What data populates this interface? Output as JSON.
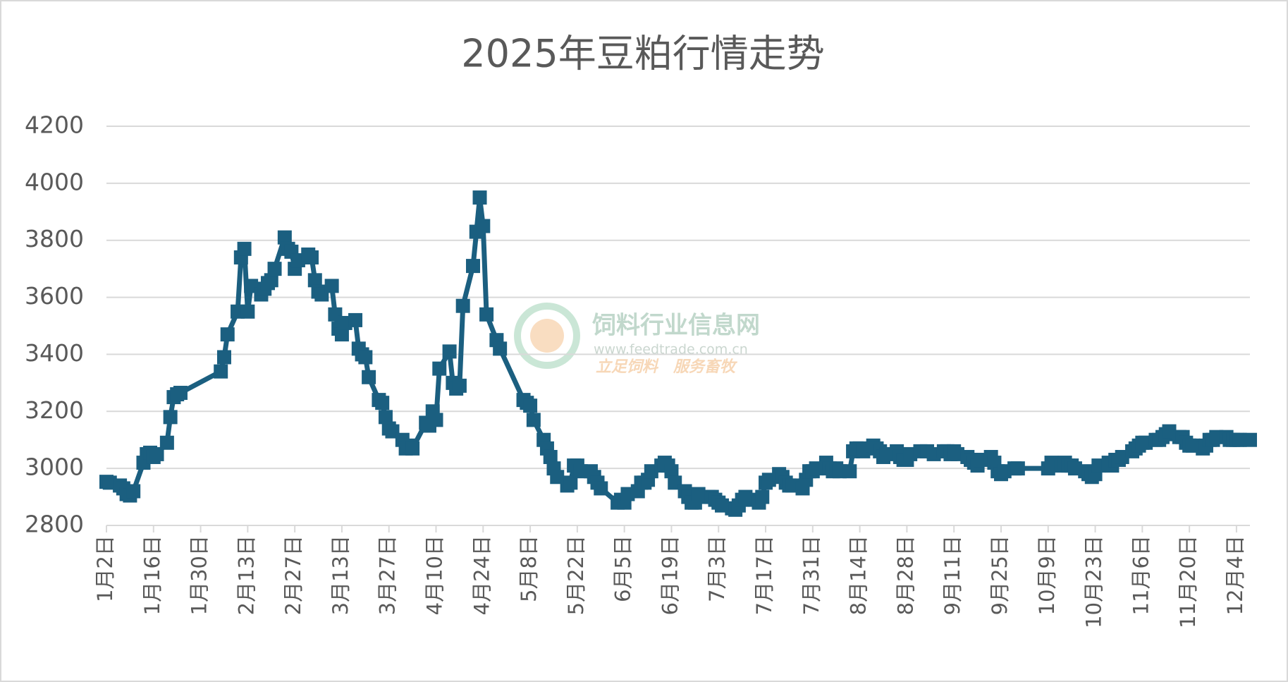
{
  "chart_data": {
    "type": "line",
    "title": "2025年豆粕行情走势",
    "color": "#1b5f80",
    "grid": true,
    "ylim": [
      2800,
      4200
    ],
    "yticks": [
      2800,
      3000,
      3200,
      3400,
      3600,
      3800,
      4000,
      4200
    ],
    "xlim": [
      "1月2日",
      "12月8日"
    ],
    "xticks": [
      "1月2日",
      "1月16日",
      "1月30日",
      "2月13日",
      "2月27日",
      "3月13日",
      "3月27日",
      "4月10日",
      "4月24日",
      "5月8日",
      "5月22日",
      "6月5日",
      "6月19日",
      "7月3日",
      "7月17日",
      "7月31日",
      "8月14日",
      "8月28日",
      "9月11日",
      "9月25日",
      "10月9日",
      "10月23日",
      "11月6日",
      "11月20日",
      "12月4日"
    ],
    "x": [
      "1月2日",
      "1月3日",
      "1月6日",
      "1月7日",
      "1月8日",
      "1月9日",
      "1月10日",
      "1月13日",
      "1月14日",
      "1月15日",
      "1月16日",
      "1月17日",
      "1月20日",
      "1月21日",
      "1月22日",
      "1月23日",
      "1月24日",
      "2月5日",
      "2月6日",
      "2月7日",
      "2月10日",
      "2月11日",
      "2月12日",
      "2月13日",
      "2月14日",
      "2月17日",
      "2月18日",
      "2月19日",
      "2月20日",
      "2月21日",
      "2月24日",
      "2月25日",
      "2月26日",
      "2月27日",
      "2月28日",
      "3月3日",
      "3月4日",
      "3月5日",
      "3月6日",
      "3月7日",
      "3月10日",
      "3月11日",
      "3月12日",
      "3月13日",
      "3月14日",
      "3月17日",
      "3月18日",
      "3月19日",
      "3月20日",
      "3月21日",
      "3月24日",
      "3月25日",
      "3月26日",
      "3月27日",
      "3月28日",
      "3月31日",
      "4月1日",
      "4月2日",
      "4月3日",
      "4月7日",
      "4月8日",
      "4月9日",
      "4月10日",
      "4月11日",
      "4月14日",
      "4月15日",
      "4月16日",
      "4月17日",
      "4月18日",
      "4月21日",
      "4月22日",
      "4月23日",
      "4月24日",
      "4月25日",
      "4月28日",
      "4月29日",
      "5月6日",
      "5月7日",
      "5月8日",
      "5月9日",
      "5月12日",
      "5月13日",
      "5月14日",
      "5月15日",
      "5月16日",
      "5月19日",
      "5月20日",
      "5月21日",
      "5月22日",
      "5月23日",
      "5月26日",
      "5月27日",
      "5月28日",
      "5月29日",
      "6月3日",
      "6月4日",
      "6月5日",
      "6月6日",
      "6月9日",
      "6月10日",
      "6月11日",
      "6月12日",
      "6月13日",
      "6月16日",
      "6月17日",
      "6月18日",
      "6月19日",
      "6月20日",
      "6月23日",
      "6月24日",
      "6月25日",
      "6月26日",
      "6月27日",
      "6月30日",
      "7月1日",
      "7月2日",
      "7月3日",
      "7月4日",
      "7月7日",
      "7月8日",
      "7月9日",
      "7月10日",
      "7月11日",
      "7月14日",
      "7月15日",
      "7月16日",
      "7月17日",
      "7月18日",
      "7月21日",
      "7月22日",
      "7月23日",
      "7月24日",
      "7月25日",
      "7月28日",
      "7月29日",
      "7月30日",
      "7月31日",
      "8月1日",
      "8月4日",
      "8月5日",
      "8月6日",
      "8月7日",
      "8月8日",
      "8月11日",
      "8月12日",
      "8月13日",
      "8月14日",
      "8月15日",
      "8月18日",
      "8月19日",
      "8月20日",
      "8月21日",
      "8月22日",
      "8月25日",
      "8月26日",
      "8月27日",
      "8月28日",
      "8月29日",
      "9月1日",
      "9月3日",
      "9月5日",
      "9月8日",
      "9月9日",
      "9月10日",
      "9月11日",
      "9月12日",
      "9月15日",
      "9月16日",
      "9月17日",
      "9月18日",
      "9月19日",
      "9月22日",
      "9月23日",
      "9月24日",
      "9月25日",
      "9月26日",
      "9月29日",
      "9月30日",
      "10月9日",
      "10月10日",
      "10月13日",
      "10月14日",
      "10月15日",
      "10月16日",
      "10月17日",
      "10月20日",
      "10月21日",
      "10月22日",
      "10月23日",
      "10月24日",
      "10月27日",
      "10月28日",
      "10月29日",
      "10月30日",
      "10月31日",
      "11月3日",
      "11月4日",
      "11月5日",
      "11月6日",
      "11月7日",
      "11月10日",
      "11月11日",
      "11月12日",
      "11月13日",
      "11月14日",
      "11月17日",
      "11月18日",
      "11月19日",
      "11月20日",
      "11月21日",
      "11月24日",
      "11月25日",
      "11月26日",
      "11月27日",
      "11月28日",
      "12月1日",
      "12月2日",
      "12月3日",
      "12月4日",
      "12月5日",
      "12月8日"
    ],
    "values": [
      2953,
      2950,
      2940,
      2930,
      2910,
      2905,
      2920,
      3020,
      3050,
      3055,
      3040,
      3050,
      3090,
      3180,
      3250,
      3260,
      3265,
      3340,
      3390,
      3470,
      3550,
      3740,
      3770,
      3550,
      3640,
      3610,
      3630,
      3650,
      3660,
      3700,
      3810,
      3770,
      3760,
      3700,
      3730,
      3750,
      3740,
      3660,
      3620,
      3610,
      3640,
      3540,
      3490,
      3470,
      3510,
      3520,
      3420,
      3400,
      3390,
      3320,
      3240,
      3230,
      3180,
      3140,
      3130,
      3100,
      3070,
      3080,
      3070,
      3160,
      3150,
      3200,
      3170,
      3350,
      3410,
      3300,
      3280,
      3290,
      3570,
      3710,
      3830,
      3950,
      3850,
      3540,
      3450,
      3420,
      3240,
      3230,
      3220,
      3170,
      3100,
      3070,
      3040,
      3000,
      2970,
      2940,
      2950,
      3010,
      3010,
      2990,
      2990,
      2970,
      2950,
      2930,
      2880,
      2890,
      2880,
      2910,
      2920,
      2950,
      2950,
      2960,
      2990,
      3010,
      3020,
      3010,
      2990,
      2950,
      2920,
      2900,
      2880,
      2880,
      2910,
      2900,
      2900,
      2890,
      2880,
      2870,
      2860,
      2855,
      2870,
      2890,
      2900,
      2890,
      2880,
      2900,
      2950,
      2960,
      2980,
      2970,
      2950,
      2940,
      2940,
      2930,
      2960,
      2990,
      2990,
      3000,
      3020,
      3000,
      2990,
      3000,
      2990,
      2990,
      3060,
      3070,
      3070,
      3060,
      3080,
      3070,
      3060,
      3040,
      3050,
      3060,
      3040,
      3030,
      3030,
      3050,
      3060,
      3060,
      3050,
      3060,
      3060,
      3050,
      3060,
      3050,
      3040,
      3030,
      3020,
      3010,
      3030,
      3040,
      3020,
      2990,
      2980,
      2990,
      3000,
      3000,
      3000,
      3020,
      3010,
      3020,
      3010,
      3010,
      3000,
      2990,
      2980,
      2970,
      2980,
      3010,
      3020,
      3010,
      3030,
      3030,
      3040,
      3060,
      3070,
      3080,
      3090,
      3090,
      3100,
      3100,
      3110,
      3120,
      3130,
      3110,
      3110,
      3090,
      3080,
      3080,
      3070,
      3080,
      3100,
      3100,
      3110,
      3110,
      3100,
      3100,
      3100,
      3100,
      3100
    ]
  },
  "watermark": {
    "name": "饲料行业信息网",
    "url": "www.feedtrade.com.cn",
    "slogan": "立足饲料　服务畜牧"
  }
}
